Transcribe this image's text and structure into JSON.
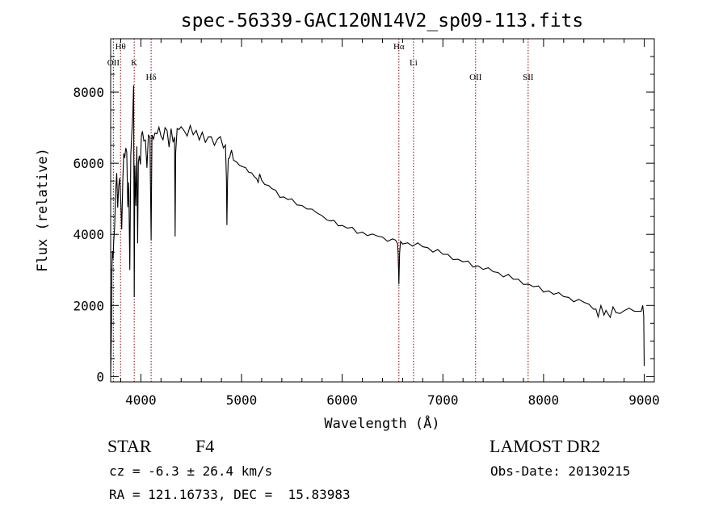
{
  "chart_data": {
    "type": "line",
    "title": "spec-56339-GAC120N14V2_sp09-113.fits",
    "xlabel": "Wavelength (Å)",
    "ylabel": "Flux (relative)",
    "xlim": [
      3700,
      9100
    ],
    "ylim": [
      -150,
      9500
    ],
    "xticks": [
      4000,
      5000,
      6000,
      7000,
      8000,
      9000
    ],
    "yticks": [
      0,
      2000,
      4000,
      6000,
      8000
    ],
    "grid": false,
    "line_color": "#000000",
    "marker_color": "#8b0000",
    "line_markers": [
      {
        "label": "Hθ",
        "x": 3798,
        "row": 0
      },
      {
        "label": "OII",
        "x": 3727,
        "row": 1
      },
      {
        "label": "K",
        "x": 3934,
        "row": 1
      },
      {
        "label": "Hδ",
        "x": 4102,
        "row": 2
      },
      {
        "label": "Hα",
        "x": 6563,
        "row": 0
      },
      {
        "label": "Li",
        "x": 6708,
        "row": 1
      },
      {
        "label": "OII",
        "x": 7325,
        "row": 2
      },
      {
        "label": "SII",
        "x": 7847,
        "row": 2
      }
    ],
    "series": [
      {
        "x": [
          3700,
          3708,
          3712,
          3718,
          3724,
          3730,
          3740,
          3750,
          3760,
          3770,
          3780,
          3790,
          3800,
          3810,
          3820,
          3830,
          3840,
          3850,
          3860,
          3870,
          3880,
          3890,
          3900,
          3910,
          3920,
          3928,
          3934,
          3940,
          3950,
          3960,
          3968,
          3975,
          3985,
          3995,
          4005,
          4015,
          4030,
          4045,
          4060,
          4075,
          4090,
          4102,
          4110,
          4125,
          4140,
          4160,
          4180,
          4200,
          4220,
          4240,
          4260,
          4280,
          4300,
          4320,
          4335,
          4340,
          4346,
          4360,
          4380,
          4400,
          4430,
          4460,
          4490,
          4520,
          4550,
          4580,
          4610,
          4640,
          4670,
          4700,
          4730,
          4760,
          4790,
          4820,
          4840,
          4850,
          4855,
          4861,
          4868,
          4880,
          4900,
          4920,
          4950,
          4980,
          5010,
          5040,
          5070,
          5100,
          5130,
          5150,
          5165,
          5180,
          5200,
          5230,
          5270,
          5300,
          5340,
          5380,
          5420,
          5460,
          5500,
          5550,
          5600,
          5650,
          5700,
          5750,
          5800,
          5850,
          5890,
          5900,
          5920,
          5960,
          6000,
          6050,
          6100,
          6150,
          6200,
          6250,
          6300,
          6350,
          6400,
          6450,
          6500,
          6530,
          6550,
          6556,
          6563,
          6570,
          6580,
          6600,
          6650,
          6700,
          6750,
          6800,
          6850,
          6900,
          6950,
          7000,
          7050,
          7100,
          7150,
          7200,
          7250,
          7300,
          7350,
          7400,
          7450,
          7500,
          7550,
          7600,
          7650,
          7700,
          7750,
          7800,
          7850,
          7900,
          7950,
          8000,
          8050,
          8100,
          8150,
          8200,
          8250,
          8300,
          8350,
          8400,
          8450,
          8498,
          8520,
          8542,
          8570,
          8600,
          8620,
          8662,
          8690,
          8720,
          8760,
          8800,
          8850,
          8900,
          8940,
          8970,
          8985,
          8995,
          9000
        ],
        "values": [
          0,
          1500,
          3000,
          3600,
          3300,
          3800,
          4200,
          5200,
          5700,
          4800,
          5300,
          5600,
          4900,
          4200,
          5500,
          6300,
          6100,
          6500,
          6300,
          4800,
          5400,
          3000,
          6200,
          6900,
          7300,
          8200,
          2200,
          6000,
          4800,
          6500,
          3700,
          6100,
          6200,
          6000,
          6700,
          6900,
          6600,
          6700,
          5800,
          6800,
          6700,
          3900,
          6800,
          6700,
          6800,
          6900,
          7000,
          6800,
          6600,
          7000,
          6900,
          6500,
          6900,
          6600,
          6700,
          4000,
          6300,
          7000,
          6900,
          7100,
          6900,
          6800,
          7000,
          6800,
          6900,
          6700,
          6800,
          6600,
          6700,
          6800,
          6500,
          6700,
          6700,
          6500,
          6500,
          5600,
          4200,
          5500,
          6100,
          6200,
          6300,
          6100,
          6000,
          6000,
          5900,
          5900,
          5700,
          5800,
          5600,
          5600,
          5400,
          5700,
          5500,
          5450,
          5300,
          5300,
          5200,
          5100,
          5050,
          5000,
          4950,
          4900,
          4800,
          4750,
          4650,
          4600,
          4500,
          4450,
          4300,
          4400,
          4350,
          4300,
          4250,
          4200,
          4150,
          4100,
          4050,
          4000,
          3950,
          3950,
          3900,
          3850,
          3800,
          3850,
          3700,
          3500,
          2600,
          3500,
          3750,
          3800,
          3750,
          3700,
          3700,
          3650,
          3600,
          3550,
          3500,
          3450,
          3400,
          3350,
          3300,
          3250,
          3200,
          3150,
          3100,
          3050,
          3000,
          2950,
          2900,
          2850,
          2800,
          2750,
          2700,
          2650,
          2600,
          2550,
          2500,
          2450,
          2400,
          2350,
          2300,
          2250,
          2200,
          2150,
          2100,
          2100,
          2000,
          1950,
          1900,
          1700,
          1950,
          1800,
          1850,
          1700,
          1900,
          1800,
          1750,
          1900,
          1850,
          1850,
          1800,
          1900,
          2000,
          1700,
          300
        ]
      }
    ]
  },
  "info": {
    "class_label": "STAR",
    "subclass": "F4",
    "survey": "LAMOST DR2",
    "cz_text": "cz = -6.3 ± 26.4 km/s",
    "obs_date": "Obs-Date: 20130215",
    "radec": "RA = 121.16733, DEC =  15.83983"
  }
}
